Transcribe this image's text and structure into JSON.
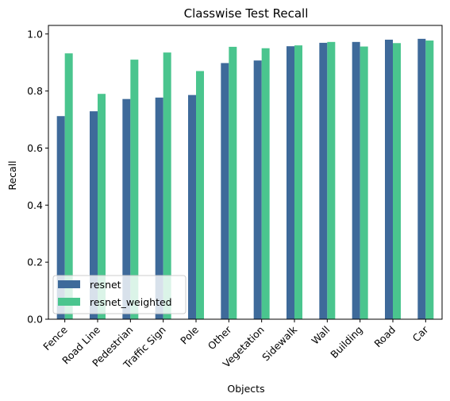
{
  "chart_data": {
    "type": "bar",
    "title": "Classwise Test Recall",
    "xlabel": "Objects",
    "ylabel": "Recall",
    "categories": [
      "Fence",
      "Road Line",
      "Pedestrian",
      "Traffic Sign",
      "Pole",
      "Other",
      "Vegetation",
      "Sidewalk",
      "Wall",
      "Building",
      "Road",
      "Car"
    ],
    "series": [
      {
        "name": "resnet",
        "color": "#3e6a9a",
        "values": [
          0.712,
          0.729,
          0.772,
          0.777,
          0.786,
          0.898,
          0.907,
          0.957,
          0.969,
          0.972,
          0.98,
          0.983
        ]
      },
      {
        "name": "resnet_weighted",
        "color": "#4ac58e",
        "values": [
          0.932,
          0.79,
          0.91,
          0.935,
          0.87,
          0.955,
          0.95,
          0.96,
          0.972,
          0.956,
          0.968,
          0.977
        ]
      }
    ],
    "ylim": [
      0,
      1.03
    ],
    "yticks": [
      "0.0",
      "0.2",
      "0.4",
      "0.6",
      "0.8",
      "1.0"
    ],
    "grid": false,
    "legend": "lower-left"
  }
}
